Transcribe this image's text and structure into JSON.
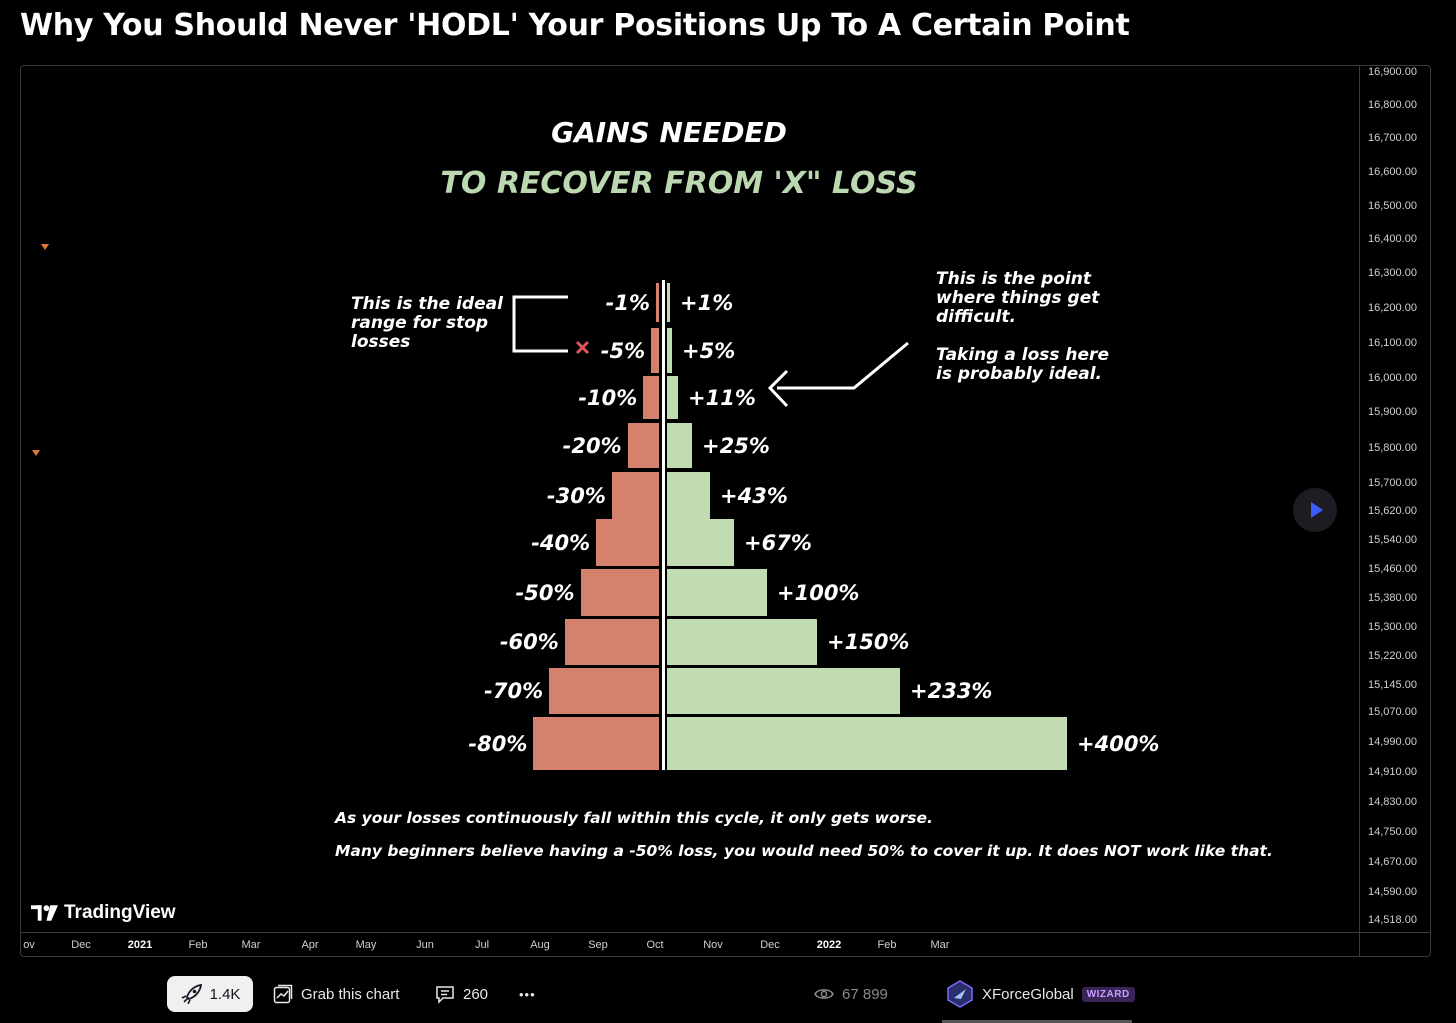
{
  "page": {
    "title": "Why You Should Never 'HODL' Your Positions Up To A Certain Point"
  },
  "chart": {
    "heading_line1": "GAINS NEEDED",
    "heading_line2": "TO RECOVER FROM 'X\" LOSS",
    "rows": [
      {
        "loss": "-1%",
        "gain": "+1%",
        "loss_pct": 1,
        "gain_pct": 1
      },
      {
        "loss": "-5%",
        "gain": "+5%",
        "loss_pct": 5,
        "gain_pct": 5
      },
      {
        "loss": "-10%",
        "gain": "+11%",
        "loss_pct": 10,
        "gain_pct": 11
      },
      {
        "loss": "-20%",
        "gain": "+25%",
        "loss_pct": 20,
        "gain_pct": 25
      },
      {
        "loss": "-30%",
        "gain": "+43%",
        "loss_pct": 30,
        "gain_pct": 43
      },
      {
        "loss": "-40%",
        "gain": "+67%",
        "loss_pct": 40,
        "gain_pct": 67
      },
      {
        "loss": "-50%",
        "gain": "+100%",
        "loss_pct": 50,
        "gain_pct": 100
      },
      {
        "loss": "-60%",
        "gain": "+150%",
        "loss_pct": 60,
        "gain_pct": 150
      },
      {
        "loss": "-70%",
        "gain": "+233%",
        "loss_pct": 70,
        "gain_pct": 233
      },
      {
        "loss": "-80%",
        "gain": "+400%",
        "loss_pct": 80,
        "gain_pct": 400
      }
    ],
    "note_left": "This is the ideal range for stop losses",
    "note_right_1": "This is the point where things get difficult.",
    "note_right_2": "Taking a loss here is probably ideal.",
    "caption_1": "As your losses continuously fall within this cycle, it only gets worse.",
    "caption_2": "Many beginners believe having a -50% loss, you would need 50% to cover it up. It does NOT work like that.",
    "colors": {
      "loss": "#d4826e",
      "gain": "#c2dcb2",
      "heading_accent": "#bcd8b0"
    },
    "price_ticks": [
      "16,900.00",
      "16,800.00",
      "16,700.00",
      "16,600.00",
      "16,500.00",
      "16,400.00",
      "16,300.00",
      "16,200.00",
      "16,100.00",
      "16,000.00",
      "15,900.00",
      "15,800.00",
      "15,700.00",
      "15,620.00",
      "15,540.00",
      "15,460.00",
      "15,380.00",
      "15,300.00",
      "15,220.00",
      "15,145.00",
      "15,070.00",
      "14,990.00",
      "14,910.00",
      "14,830.00",
      "14,750.00",
      "14,670.00",
      "14,590.00",
      "14,518.00"
    ],
    "time_ticks": [
      {
        "label": "ov",
        "bold": false
      },
      {
        "label": "Dec",
        "bold": false
      },
      {
        "label": "2021",
        "bold": true
      },
      {
        "label": "Feb",
        "bold": false
      },
      {
        "label": "Mar",
        "bold": false
      },
      {
        "label": "Apr",
        "bold": false
      },
      {
        "label": "May",
        "bold": false
      },
      {
        "label": "Jun",
        "bold": false
      },
      {
        "label": "Jul",
        "bold": false
      },
      {
        "label": "Aug",
        "bold": false
      },
      {
        "label": "Sep",
        "bold": false
      },
      {
        "label": "Oct",
        "bold": false
      },
      {
        "label": "Nov",
        "bold": false
      },
      {
        "label": "Dec",
        "bold": false
      },
      {
        "label": "2022",
        "bold": true
      },
      {
        "label": "Feb",
        "bold": false
      },
      {
        "label": "Mar",
        "bold": false
      }
    ],
    "watermark": "TradingView"
  },
  "footer": {
    "boost_count": "1.4K",
    "grab_label": "Grab this chart",
    "comments_count": "260",
    "more_label": "•••",
    "views_count": "67 899",
    "author_name": "XForceGlobal",
    "author_badge": "WIZARD",
    "icons": [
      "rocket-icon",
      "chart-grab-icon",
      "comment-icon",
      "more-icon",
      "eye-icon",
      "author-avatar-icon"
    ]
  }
}
